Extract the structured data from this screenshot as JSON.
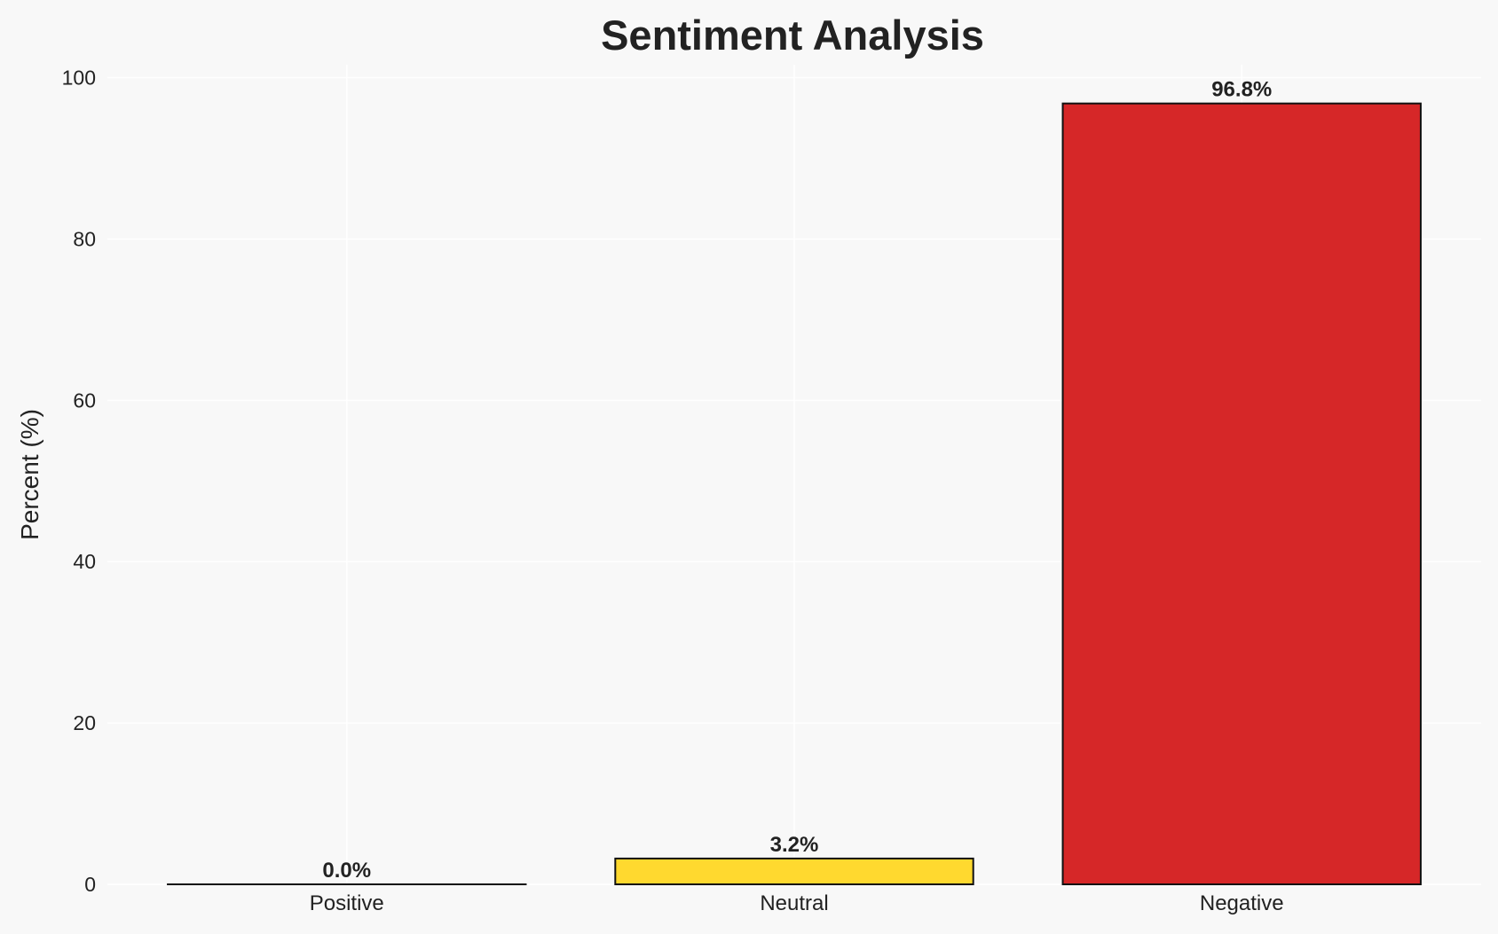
{
  "chart_data": {
    "type": "bar",
    "title": "Sentiment Analysis",
    "xlabel": "",
    "ylabel": "Percent (%)",
    "categories": [
      "Positive",
      "Neutral",
      "Negative"
    ],
    "values": [
      0.0,
      3.2,
      96.8
    ],
    "data_labels": [
      "0.0%",
      "3.2%",
      "96.8%"
    ],
    "colors": [
      "#2ca02c",
      "#ffd92f",
      "#d62728"
    ],
    "edge_color": "#111111",
    "ylim": [
      0,
      101.6
    ],
    "yticks": [
      0,
      20,
      40,
      60,
      80,
      100
    ],
    "grid": true,
    "background": "#f8f8f8",
    "grid_color": "#ffffff"
  }
}
